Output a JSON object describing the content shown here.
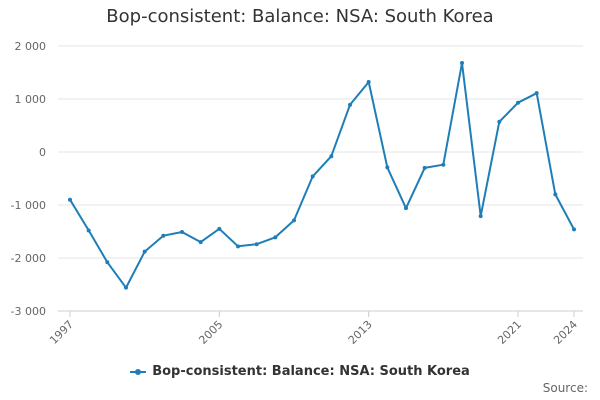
{
  "title": "Bop-consistent: Balance: NSA: South Korea",
  "source_label": "Source:",
  "colors": {
    "series": "#1f7eb8",
    "grid": "#e6e6e6",
    "axis_text": "#666666"
  },
  "chart_data": {
    "type": "line",
    "title": "Bop-consistent: Balance: NSA: South Korea",
    "x": [
      1997,
      1998,
      1999,
      2000,
      2001,
      2002,
      2003,
      2004,
      2005,
      2006,
      2007,
      2008,
      2009,
      2010,
      2011,
      2012,
      2013,
      2014,
      2015,
      2016,
      2017,
      2018,
      2019,
      2020,
      2021,
      2022,
      2023,
      2024
    ],
    "series": [
      {
        "name": "Bop-consistent: Balance: NSA: South Korea",
        "values": [
          -900,
          -1480,
          -2080,
          -2560,
          -1880,
          -1580,
          -1510,
          -1700,
          -1450,
          -1780,
          -1740,
          -1610,
          -1290,
          -460,
          -80,
          890,
          1320,
          -290,
          -1060,
          -300,
          -240,
          1680,
          -1210,
          570,
          930,
          1110,
          -800,
          -1460
        ]
      }
    ],
    "ylim": [
      -3000,
      2000
    ],
    "yticks": [
      -3000,
      -2000,
      -1000,
      0,
      1000,
      2000
    ],
    "ytick_labels": [
      "-3 000",
      "-2 000",
      "-1 000",
      "0",
      "1 000",
      "2 000"
    ],
    "xticks": [
      1997,
      2005,
      2013,
      2021,
      2024
    ],
    "xtick_labels": [
      "1997",
      "2005",
      "2013",
      "2021",
      "2024"
    ],
    "grid": true,
    "legend": "bottom"
  }
}
